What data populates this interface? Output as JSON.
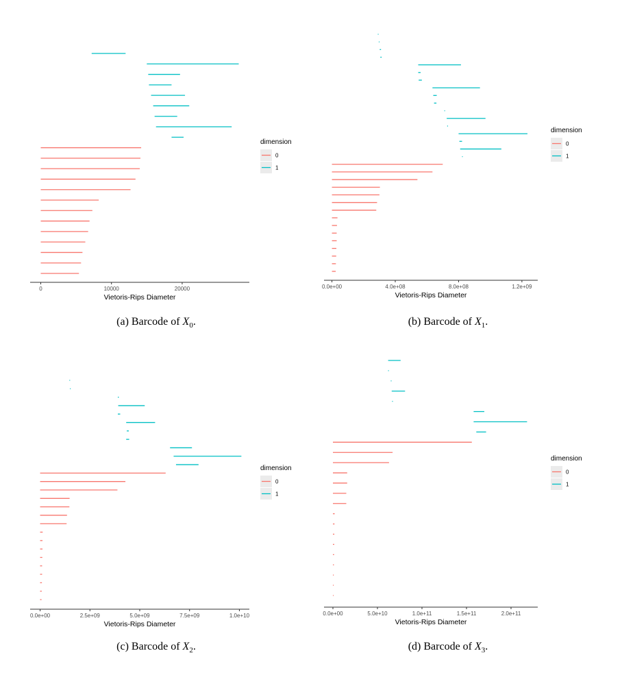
{
  "colors": {
    "dim0": "#F8766D",
    "dim1": "#00BFC4",
    "legend_bg": "#EBEBEB"
  },
  "legend": {
    "title": "dimension",
    "labels": [
      "0",
      "1"
    ]
  },
  "chart_data": [
    {
      "type": "barcode",
      "caption": {
        "text": "(a) Barcode of ",
        "var": "X",
        "sub": "0",
        "end": "."
      },
      "xlabel": "Vietoris-Rips Diameter",
      "xlim": [
        -1500,
        29500
      ],
      "xticks": [
        0,
        10000,
        20000
      ],
      "xtick_labels": [
        "0",
        "10000",
        "20000"
      ],
      "bars": [
        {
          "dim": 1,
          "start": 7200,
          "end": 12000
        },
        {
          "dim": 1,
          "start": 15000,
          "end": 28000
        },
        {
          "dim": 1,
          "start": 15200,
          "end": 19700
        },
        {
          "dim": 1,
          "start": 15300,
          "end": 18500
        },
        {
          "dim": 1,
          "start": 15600,
          "end": 20400
        },
        {
          "dim": 1,
          "start": 15900,
          "end": 21000
        },
        {
          "dim": 1,
          "start": 16100,
          "end": 19300
        },
        {
          "dim": 1,
          "start": 16300,
          "end": 27000
        },
        {
          "dim": 1,
          "start": 18500,
          "end": 20200
        },
        {
          "dim": 0,
          "start": 0,
          "end": 14200
        },
        {
          "dim": 0,
          "start": 0,
          "end": 14100
        },
        {
          "dim": 0,
          "start": 0,
          "end": 14000
        },
        {
          "dim": 0,
          "start": 0,
          "end": 13400
        },
        {
          "dim": 0,
          "start": 0,
          "end": 12700
        },
        {
          "dim": 0,
          "start": 0,
          "end": 8200
        },
        {
          "dim": 0,
          "start": 0,
          "end": 7300
        },
        {
          "dim": 0,
          "start": 0,
          "end": 6900
        },
        {
          "dim": 0,
          "start": 0,
          "end": 6700
        },
        {
          "dim": 0,
          "start": 0,
          "end": 6300
        },
        {
          "dim": 0,
          "start": 0,
          "end": 5900
        },
        {
          "dim": 0,
          "start": 0,
          "end": 5700
        },
        {
          "dim": 0,
          "start": 0,
          "end": 5400
        }
      ]
    },
    {
      "type": "barcode",
      "caption": {
        "text": "(b) Barcode of ",
        "var": "X",
        "sub": "1",
        "end": "."
      },
      "xlabel": "Vietoris-Rips Diameter",
      "xlim": [
        -50000000,
        1300000000
      ],
      "xticks": [
        0,
        400000000,
        800000000,
        1200000000
      ],
      "xtick_labels": [
        "0.0e+00",
        "4.0e+08",
        "8.0e+08",
        "1.2e+09"
      ],
      "bars": [
        {
          "dim": 1,
          "start": 290000000,
          "end": 292000000
        },
        {
          "dim": 1,
          "start": 296000000,
          "end": 298000000
        },
        {
          "dim": 1,
          "start": 302000000,
          "end": 310000000
        },
        {
          "dim": 1,
          "start": 306000000,
          "end": 314000000
        },
        {
          "dim": 1,
          "start": 545000000,
          "end": 815000000
        },
        {
          "dim": 1,
          "start": 545000000,
          "end": 560000000
        },
        {
          "dim": 1,
          "start": 548000000,
          "end": 568000000
        },
        {
          "dim": 1,
          "start": 635000000,
          "end": 935000000
        },
        {
          "dim": 1,
          "start": 640000000,
          "end": 662000000
        },
        {
          "dim": 1,
          "start": 645000000,
          "end": 660000000
        },
        {
          "dim": 1,
          "start": 710000000,
          "end": 714000000
        },
        {
          "dim": 1,
          "start": 725000000,
          "end": 970000000
        },
        {
          "dim": 1,
          "start": 728000000,
          "end": 733000000
        },
        {
          "dim": 1,
          "start": 800000000,
          "end": 1235000000
        },
        {
          "dim": 1,
          "start": 805000000,
          "end": 822000000
        },
        {
          "dim": 1,
          "start": 810000000,
          "end": 1070000000
        },
        {
          "dim": 1,
          "start": 822000000,
          "end": 826000000
        },
        {
          "dim": 0,
          "start": 0,
          "end": 700000000
        },
        {
          "dim": 0,
          "start": 0,
          "end": 635000000
        },
        {
          "dim": 0,
          "start": 0,
          "end": 540000000
        },
        {
          "dim": 0,
          "start": 0,
          "end": 303000000
        },
        {
          "dim": 0,
          "start": 0,
          "end": 300000000
        },
        {
          "dim": 0,
          "start": 0,
          "end": 285000000
        },
        {
          "dim": 0,
          "start": 0,
          "end": 280000000
        },
        {
          "dim": 0,
          "start": 0,
          "end": 35000000
        },
        {
          "dim": 0,
          "start": 0,
          "end": 32000000
        },
        {
          "dim": 0,
          "start": 0,
          "end": 30000000
        },
        {
          "dim": 0,
          "start": 0,
          "end": 30000000
        },
        {
          "dim": 0,
          "start": 0,
          "end": 28000000
        },
        {
          "dim": 0,
          "start": 0,
          "end": 27000000
        },
        {
          "dim": 0,
          "start": 0,
          "end": 25000000
        },
        {
          "dim": 0,
          "start": 0,
          "end": 24000000
        }
      ]
    },
    {
      "type": "barcode",
      "caption": {
        "text": "(c) Barcode of ",
        "var": "X",
        "sub": "2",
        "end": "."
      },
      "xlabel": "Vietoris-Rips Diameter",
      "xlim": [
        -500000000,
        10500000000
      ],
      "xticks": [
        0,
        2500000000,
        5000000000,
        7500000000,
        10000000000
      ],
      "xtick_labels": [
        "0.0e+00",
        "2.5e+09",
        "5.0e+09",
        "7.5e+09",
        "1.0e+10"
      ],
      "bars": [
        {
          "dim": 1,
          "start": 1470000000,
          "end": 1490000000
        },
        {
          "dim": 1,
          "start": 1500000000,
          "end": 1520000000
        },
        {
          "dim": 1,
          "start": 3900000000,
          "end": 3950000000
        },
        {
          "dim": 1,
          "start": 3920000000,
          "end": 5250000000
        },
        {
          "dim": 1,
          "start": 3900000000,
          "end": 4020000000
        },
        {
          "dim": 1,
          "start": 4320000000,
          "end": 5770000000
        },
        {
          "dim": 1,
          "start": 4350000000,
          "end": 4450000000
        },
        {
          "dim": 1,
          "start": 4320000000,
          "end": 4470000000
        },
        {
          "dim": 1,
          "start": 6520000000,
          "end": 7620000000
        },
        {
          "dim": 1,
          "start": 6700000000,
          "end": 10100000000
        },
        {
          "dim": 1,
          "start": 6820000000,
          "end": 7950000000
        },
        {
          "dim": 0,
          "start": 0,
          "end": 6300000000
        },
        {
          "dim": 0,
          "start": 0,
          "end": 4280000000
        },
        {
          "dim": 0,
          "start": 0,
          "end": 3880000000
        },
        {
          "dim": 0,
          "start": 0,
          "end": 1480000000
        },
        {
          "dim": 0,
          "start": 0,
          "end": 1470000000
        },
        {
          "dim": 0,
          "start": 0,
          "end": 1350000000
        },
        {
          "dim": 0,
          "start": 0,
          "end": 1330000000
        },
        {
          "dim": 0,
          "start": 0,
          "end": 130000000
        },
        {
          "dim": 0,
          "start": 0,
          "end": 120000000
        },
        {
          "dim": 0,
          "start": 0,
          "end": 120000000
        },
        {
          "dim": 0,
          "start": 0,
          "end": 110000000
        },
        {
          "dim": 0,
          "start": 0,
          "end": 100000000
        },
        {
          "dim": 0,
          "start": 0,
          "end": 100000000
        },
        {
          "dim": 0,
          "start": 0,
          "end": 90000000
        },
        {
          "dim": 0,
          "start": 0,
          "end": 80000000
        },
        {
          "dim": 0,
          "start": 0,
          "end": 70000000
        }
      ]
    },
    {
      "type": "barcode",
      "caption": {
        "text": "(d) Barcode of ",
        "var": "X",
        "sub": "3",
        "end": "."
      },
      "xlabel": "Vietoris-Rips Diameter",
      "xlim": [
        -10000000000,
        230000000000
      ],
      "xticks": [
        0,
        50000000000,
        100000000000,
        150000000000,
        200000000000
      ],
      "xtick_labels": [
        "0.0e+00",
        "5.0e+10",
        "1.0e+11",
        "1.5e+11",
        "2.0e+11"
      ],
      "bars": [
        {
          "dim": 1,
          "start": 62000000000,
          "end": 76000000000
        },
        {
          "dim": 1,
          "start": 62000000000,
          "end": 62800000000
        },
        {
          "dim": 1,
          "start": 65000000000,
          "end": 65800000000
        },
        {
          "dim": 1,
          "start": 66000000000,
          "end": 81000000000
        },
        {
          "dim": 1,
          "start": 66500000000,
          "end": 67300000000
        },
        {
          "dim": 1,
          "start": 158000000000,
          "end": 170000000000
        },
        {
          "dim": 1,
          "start": 158000000000,
          "end": 218000000000
        },
        {
          "dim": 1,
          "start": 161000000000,
          "end": 172000000000
        },
        {
          "dim": 0,
          "start": 0,
          "end": 156000000000
        },
        {
          "dim": 0,
          "start": 0,
          "end": 67000000000
        },
        {
          "dim": 0,
          "start": 0,
          "end": 63000000000
        },
        {
          "dim": 0,
          "start": 0,
          "end": 16000000000
        },
        {
          "dim": 0,
          "start": 0,
          "end": 16000000000
        },
        {
          "dim": 0,
          "start": 0,
          "end": 15000000000
        },
        {
          "dim": 0,
          "start": 0,
          "end": 15000000000
        },
        {
          "dim": 0,
          "start": 0,
          "end": 2000000000
        },
        {
          "dim": 0,
          "start": 0,
          "end": 1800000000
        },
        {
          "dim": 0,
          "start": 0,
          "end": 1600000000
        },
        {
          "dim": 0,
          "start": 0,
          "end": 1500000000
        },
        {
          "dim": 0,
          "start": 0,
          "end": 1300000000
        },
        {
          "dim": 0,
          "start": 0,
          "end": 1100000000
        },
        {
          "dim": 0,
          "start": 0,
          "end": 900000000
        },
        {
          "dim": 0,
          "start": 0,
          "end": 700000000
        },
        {
          "dim": 0,
          "start": 0,
          "end": 500000000
        }
      ]
    }
  ]
}
